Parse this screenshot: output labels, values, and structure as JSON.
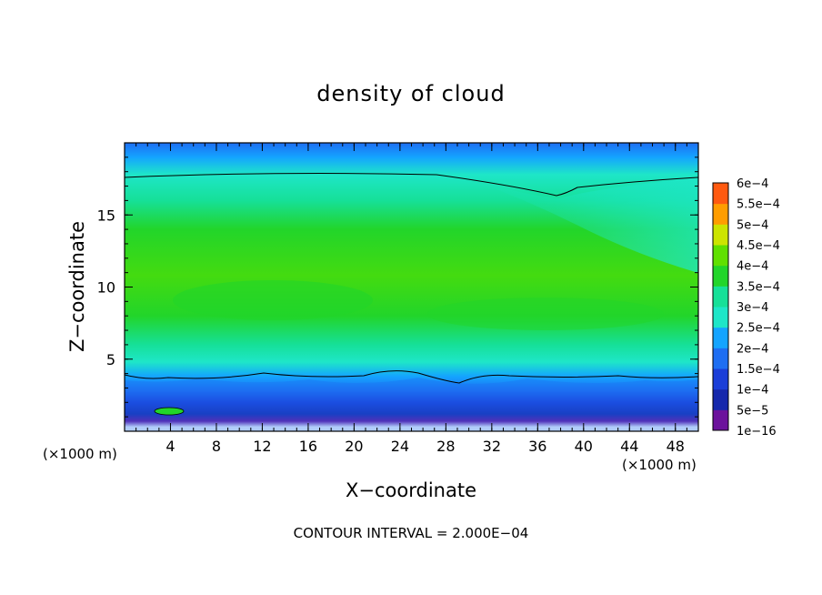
{
  "chart_data": {
    "type": "heatmap",
    "title": "density of cloud",
    "xlabel": "X−coordinate",
    "ylabel": "Z−coordinate",
    "x_unit": "(×1000 m)",
    "z_unit": "(×1000 m)",
    "xlim": [
      0,
      50
    ],
    "zlim": [
      0,
      20
    ],
    "x_ticks": [
      {
        "value": 4,
        "label": "4"
      },
      {
        "value": 8,
        "label": "8"
      },
      {
        "value": 12,
        "label": "12"
      },
      {
        "value": 16,
        "label": "16"
      },
      {
        "value": 20,
        "label": "20"
      },
      {
        "value": 24,
        "label": "24"
      },
      {
        "value": 28,
        "label": "28"
      },
      {
        "value": 32,
        "label": "32"
      },
      {
        "value": 36,
        "label": "36"
      },
      {
        "value": 40,
        "label": "40"
      },
      {
        "value": 44,
        "label": "44"
      },
      {
        "value": 48,
        "label": "48"
      }
    ],
    "z_ticks": [
      {
        "value": 5,
        "label": "5"
      },
      {
        "value": 10,
        "label": "10"
      },
      {
        "value": 15,
        "label": "15"
      }
    ],
    "colorbar": {
      "levels": [
        "1e−16",
        "5e−5",
        "1e−4",
        "1.5e−4",
        "2e−4",
        "2.5e−4",
        "3e−4",
        "3.5e−4",
        "4e−4",
        "4.5e−4",
        "5e−4",
        "5.5e−4",
        "6e−4"
      ],
      "colors": [
        "#6c129c",
        "#1628ac",
        "#1b3ed8",
        "#1e6ef2",
        "#14a4ff",
        "#1ee6c8",
        "#16e098",
        "#22d52a",
        "#60e000",
        "#cce400",
        "#ff9d00",
        "#ff5a10",
        "#ff2a22",
        "#ff8f8f"
      ]
    },
    "contour_interval_label": "CONTOUR INTERVAL = 2.000E−04"
  }
}
